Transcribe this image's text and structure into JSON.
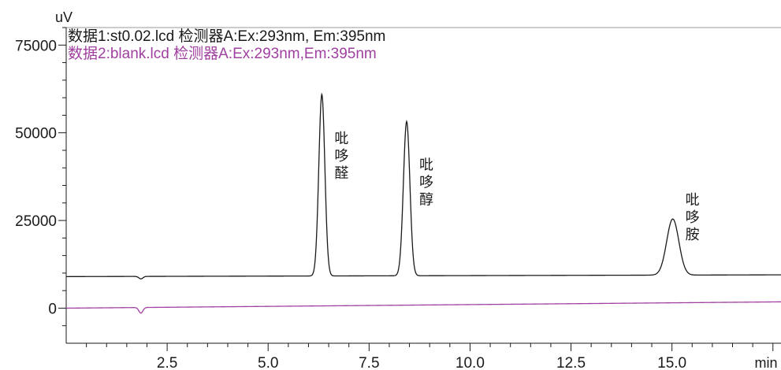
{
  "chart_data": {
    "type": "line",
    "ylabel": "uV",
    "xlabel": "min",
    "xlim": [
      0,
      17.7
    ],
    "ylim": [
      -10000,
      80000
    ],
    "x_ticks": [
      {
        "value": 2.5,
        "label": "2.5"
      },
      {
        "value": 5.0,
        "label": "5.0"
      },
      {
        "value": 7.5,
        "label": "7.5"
      },
      {
        "value": 10.0,
        "label": "10.0"
      },
      {
        "value": 12.5,
        "label": "12.5"
      },
      {
        "value": 15.0,
        "label": "15.0"
      }
    ],
    "y_ticks": [
      {
        "value": 0,
        "label": "0"
      },
      {
        "value": 25000,
        "label": "25000"
      },
      {
        "value": 50000,
        "label": "50000"
      },
      {
        "value": 75000,
        "label": "75000"
      }
    ],
    "legend": [
      {
        "text": "数据1:st0.02.lcd 检测器A:Ex:293nm, Em:395nm",
        "color": "#1a1a1a"
      },
      {
        "text": "数据2:blank.lcd 检测器A:Ex:293nm,Em:395nm",
        "color": "#a040a0"
      }
    ],
    "series": [
      {
        "color": "#1a1a1a",
        "baseline": [
          [
            0,
            9000
          ],
          [
            17.7,
            9500
          ]
        ],
        "dips": [
          {
            "x": 1.85,
            "depth": 700,
            "width": 0.05
          }
        ],
        "peaks": [
          {
            "x": 6.33,
            "height": 51800,
            "width": 0.075
          },
          {
            "x": 8.43,
            "height": 44000,
            "width": 0.08
          },
          {
            "x": 15.02,
            "height": 16000,
            "width": 0.15
          }
        ]
      },
      {
        "color": "#a040a0",
        "baseline": [
          [
            0,
            0
          ],
          [
            17.7,
            1800
          ]
        ],
        "dips": [
          {
            "x": 1.85,
            "depth": 1600,
            "width": 0.05
          }
        ],
        "peaks": []
      }
    ],
    "annotations": [
      {
        "x": 6.33,
        "y": 47000,
        "lines": [
          "吡",
          "哆",
          "醛"
        ]
      },
      {
        "x": 8.43,
        "y": 39500,
        "lines": [
          "吡",
          "哆",
          "醇"
        ]
      },
      {
        "x": 15.02,
        "y": 29500,
        "lines": [
          "吡",
          "哆",
          "胺"
        ]
      }
    ]
  }
}
